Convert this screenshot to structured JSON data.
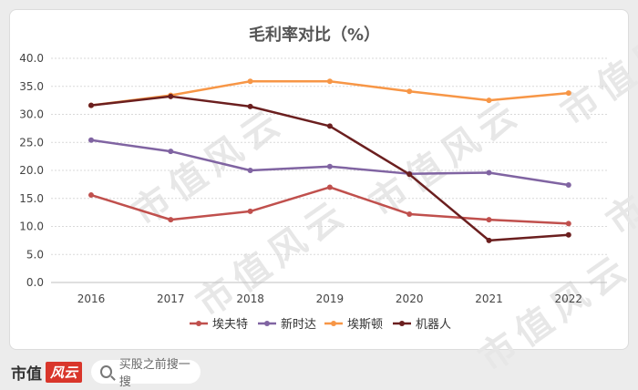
{
  "chart_data": {
    "type": "line",
    "title": "毛利率对比（%）",
    "categories": [
      "2016",
      "2017",
      "2018",
      "2019",
      "2020",
      "2021",
      "2022"
    ],
    "ylim": [
      0,
      40
    ],
    "yticks": [
      "0.0",
      "5.0",
      "10.0",
      "15.0",
      "20.0",
      "25.0",
      "30.0",
      "35.0",
      "40.0"
    ],
    "grid": true,
    "legend_position": "bottom",
    "series": [
      {
        "name": "埃夫特",
        "color": "#c0504d",
        "values": [
          15.6,
          11.2,
          12.7,
          17.0,
          12.2,
          11.2,
          10.5
        ]
      },
      {
        "name": "新时达",
        "color": "#8064a2",
        "values": [
          25.4,
          23.4,
          20.0,
          20.7,
          19.4,
          19.6,
          17.4
        ]
      },
      {
        "name": "埃斯顿",
        "color": "#f79646",
        "values": [
          31.6,
          33.4,
          35.9,
          35.9,
          34.1,
          32.5,
          33.8
        ]
      },
      {
        "name": "机器人",
        "color": "#6b1f1f",
        "values": [
          31.6,
          33.2,
          31.4,
          27.9,
          19.3,
          7.5,
          8.5
        ]
      }
    ]
  },
  "footer": {
    "brand_text": "市值",
    "brand_logo": "风云",
    "search_placeholder": "买股之前搜一搜"
  },
  "watermark": "市值风云"
}
